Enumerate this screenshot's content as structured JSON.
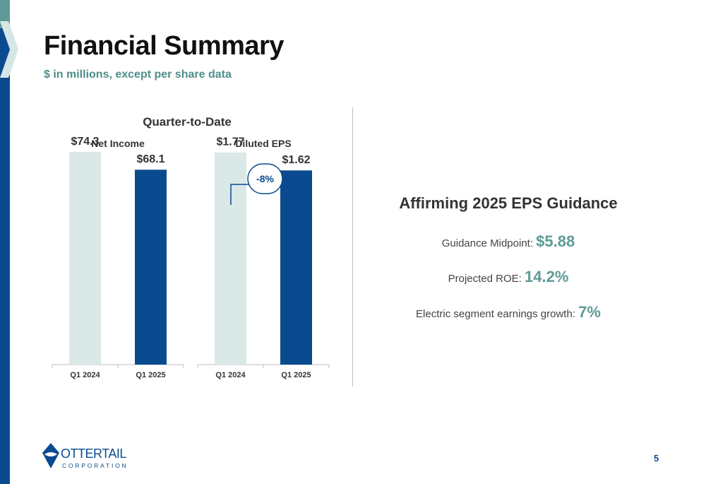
{
  "header": {
    "title": "Financial Summary",
    "subtitle": "$ in millions, except per share data"
  },
  "section_title": "Quarter-to-Date",
  "change_badge": "-8%",
  "chart_data": [
    {
      "type": "bar",
      "title": "Net Income",
      "categories": [
        "Q1 2024",
        "Q1 2025"
      ],
      "values": [
        74.3,
        68.1
      ],
      "labels": [
        "$74.3",
        "$68.1"
      ],
      "colors": [
        "#dbe8e8",
        "#0a4b8f"
      ],
      "ylim": [
        0,
        80
      ]
    },
    {
      "type": "bar",
      "title": "Diluted EPS",
      "categories": [
        "Q1 2024",
        "Q1 2025"
      ],
      "values": [
        1.77,
        1.62
      ],
      "labels": [
        "$1.77",
        "$1.62"
      ],
      "colors": [
        "#dbe8e8",
        "#0a4b8f"
      ],
      "ylim": [
        0,
        1.91
      ]
    }
  ],
  "guidance": {
    "title": "Affirming 2025 EPS Guidance",
    "items": [
      {
        "label": "Guidance Midpoint:",
        "value": "$5.88"
      },
      {
        "label": "Projected ROE:",
        "value": "14.2%"
      },
      {
        "label": "Electric segment earnings growth:",
        "value": "7%"
      }
    ]
  },
  "logo": {
    "name": "OTTERTAIL",
    "sub": "CORPORATION"
  },
  "page_number": "5",
  "colors": {
    "brand_blue": "#0a4b8f",
    "teal": "#5f9b96",
    "light_bar": "#dbe8e8"
  }
}
